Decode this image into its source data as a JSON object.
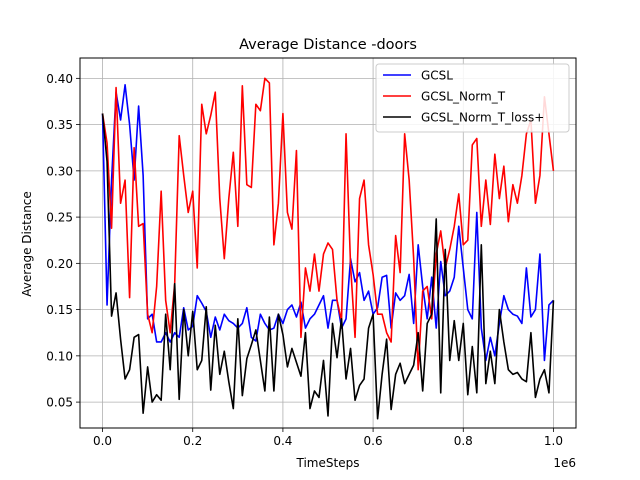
{
  "chart_data": {
    "type": "line",
    "title": "Average Distance -doors",
    "xlabel": "TimeSteps",
    "ylabel": "Average Distance",
    "x_offset_text": "1e6",
    "xlim": [
      -0.05,
      1.05
    ],
    "ylim": [
      0.022,
      0.422
    ],
    "x_ticks": [
      0.0,
      0.2,
      0.4,
      0.6,
      0.8,
      1.0
    ],
    "x_tick_labels": [
      "0.0",
      "0.2",
      "0.4",
      "0.6",
      "0.8",
      "1.0"
    ],
    "y_ticks": [
      0.05,
      0.1,
      0.15,
      0.2,
      0.25,
      0.3,
      0.35,
      0.4
    ],
    "y_tick_labels": [
      "0.05",
      "0.10",
      "0.15",
      "0.20",
      "0.25",
      "0.30",
      "0.35",
      "0.40"
    ],
    "grid": true,
    "legend_position": "top-right",
    "x": [
      0.0,
      0.01,
      0.02,
      0.03,
      0.04,
      0.05,
      0.06,
      0.07,
      0.08,
      0.09,
      0.1,
      0.11,
      0.12,
      0.13,
      0.14,
      0.15,
      0.16,
      0.17,
      0.18,
      0.19,
      0.2,
      0.21,
      0.22,
      0.23,
      0.24,
      0.25,
      0.26,
      0.27,
      0.28,
      0.29,
      0.3,
      0.31,
      0.32,
      0.33,
      0.34,
      0.35,
      0.36,
      0.37,
      0.38,
      0.39,
      0.4,
      0.41,
      0.42,
      0.43,
      0.44,
      0.45,
      0.46,
      0.47,
      0.48,
      0.49,
      0.5,
      0.51,
      0.52,
      0.53,
      0.54,
      0.55,
      0.56,
      0.57,
      0.58,
      0.59,
      0.6,
      0.61,
      0.62,
      0.63,
      0.64,
      0.65,
      0.66,
      0.67,
      0.68,
      0.69,
      0.7,
      0.71,
      0.72,
      0.73,
      0.74,
      0.75,
      0.76,
      0.77,
      0.78,
      0.79,
      0.8,
      0.81,
      0.82,
      0.83,
      0.84,
      0.85,
      0.86,
      0.87,
      0.88,
      0.89,
      0.9,
      0.91,
      0.92,
      0.93,
      0.94,
      0.95,
      0.96,
      0.97,
      0.98,
      0.99,
      1.0
    ],
    "series": [
      {
        "name": "GCSL",
        "color": "#0000ff",
        "values": [
          0.362,
          0.155,
          0.29,
          0.385,
          0.355,
          0.393,
          0.35,
          0.29,
          0.37,
          0.295,
          0.14,
          0.145,
          0.115,
          0.115,
          0.125,
          0.115,
          0.125,
          0.12,
          0.152,
          0.128,
          0.132,
          0.165,
          0.157,
          0.148,
          0.12,
          0.142,
          0.128,
          0.145,
          0.138,
          0.135,
          0.13,
          0.135,
          0.152,
          0.12,
          0.116,
          0.145,
          0.135,
          0.128,
          0.13,
          0.145,
          0.135,
          0.15,
          0.155,
          0.142,
          0.158,
          0.13,
          0.14,
          0.145,
          0.155,
          0.165,
          0.13,
          0.16,
          0.16,
          0.13,
          0.14,
          0.205,
          0.18,
          0.19,
          0.16,
          0.17,
          0.145,
          0.152,
          0.185,
          0.187,
          0.13,
          0.168,
          0.16,
          0.165,
          0.188,
          0.135,
          0.22,
          0.175,
          0.14,
          0.185,
          0.13,
          0.202,
          0.165,
          0.17,
          0.185,
          0.24,
          0.195,
          0.15,
          0.14,
          0.255,
          0.13,
          0.095,
          0.12,
          0.1,
          0.135,
          0.165,
          0.15,
          0.145,
          0.143,
          0.135,
          0.195,
          0.142,
          0.15,
          0.21,
          0.095,
          0.155,
          0.16
        ]
      },
      {
        "name": "GCSL_Norm_T",
        "color": "#ff0000",
        "values": [
          0.362,
          0.33,
          0.238,
          0.39,
          0.265,
          0.29,
          0.163,
          0.325,
          0.24,
          0.243,
          0.145,
          0.125,
          0.175,
          0.278,
          0.16,
          0.125,
          0.178,
          0.338,
          0.295,
          0.255,
          0.278,
          0.195,
          0.372,
          0.34,
          0.36,
          0.385,
          0.27,
          0.205,
          0.27,
          0.32,
          0.24,
          0.392,
          0.285,
          0.282,
          0.372,
          0.365,
          0.4,
          0.395,
          0.22,
          0.265,
          0.362,
          0.255,
          0.237,
          0.322,
          0.12,
          0.195,
          0.17,
          0.21,
          0.17,
          0.21,
          0.222,
          0.215,
          0.16,
          0.138,
          0.34,
          0.198,
          0.12,
          0.27,
          0.29,
          0.22,
          0.188,
          0.145,
          0.145,
          0.125,
          0.115,
          0.23,
          0.19,
          0.34,
          0.29,
          0.205,
          0.085,
          0.17,
          0.175,
          0.14,
          0.21,
          0.235,
          0.195,
          0.215,
          0.24,
          0.275,
          0.22,
          0.225,
          0.328,
          0.335,
          0.24,
          0.29,
          0.242,
          0.318,
          0.27,
          0.305,
          0.245,
          0.285,
          0.265,
          0.295,
          0.34,
          0.355,
          0.265,
          0.295,
          0.38,
          0.34,
          0.3
        ]
      },
      {
        "name": "GCSL_Norm_T_loss+",
        "color": "#000000",
        "values": [
          0.362,
          0.31,
          0.143,
          0.168,
          0.118,
          0.075,
          0.085,
          0.12,
          0.123,
          0.038,
          0.088,
          0.05,
          0.058,
          0.052,
          0.145,
          0.085,
          0.178,
          0.053,
          0.15,
          0.1,
          0.148,
          0.085,
          0.095,
          0.153,
          0.063,
          0.133,
          0.08,
          0.105,
          0.072,
          0.043,
          0.14,
          0.057,
          0.097,
          0.112,
          0.128,
          0.095,
          0.062,
          0.142,
          0.062,
          0.145,
          0.123,
          0.088,
          0.108,
          0.093,
          0.078,
          0.125,
          0.043,
          0.062,
          0.055,
          0.095,
          0.035,
          0.135,
          0.098,
          0.14,
          0.075,
          0.108,
          0.052,
          0.068,
          0.075,
          0.13,
          0.145,
          0.032,
          0.08,
          0.118,
          0.042,
          0.08,
          0.092,
          0.07,
          0.08,
          0.09,
          0.125,
          0.062,
          0.135,
          0.145,
          0.248,
          0.06,
          0.215,
          0.095,
          0.138,
          0.095,
          0.135,
          0.058,
          0.11,
          0.06,
          0.22,
          0.07,
          0.105,
          0.07,
          0.15,
          0.115,
          0.085,
          0.08,
          0.082,
          0.075,
          0.072,
          0.125,
          0.055,
          0.075,
          0.085,
          0.06,
          0.16
        ]
      }
    ]
  }
}
